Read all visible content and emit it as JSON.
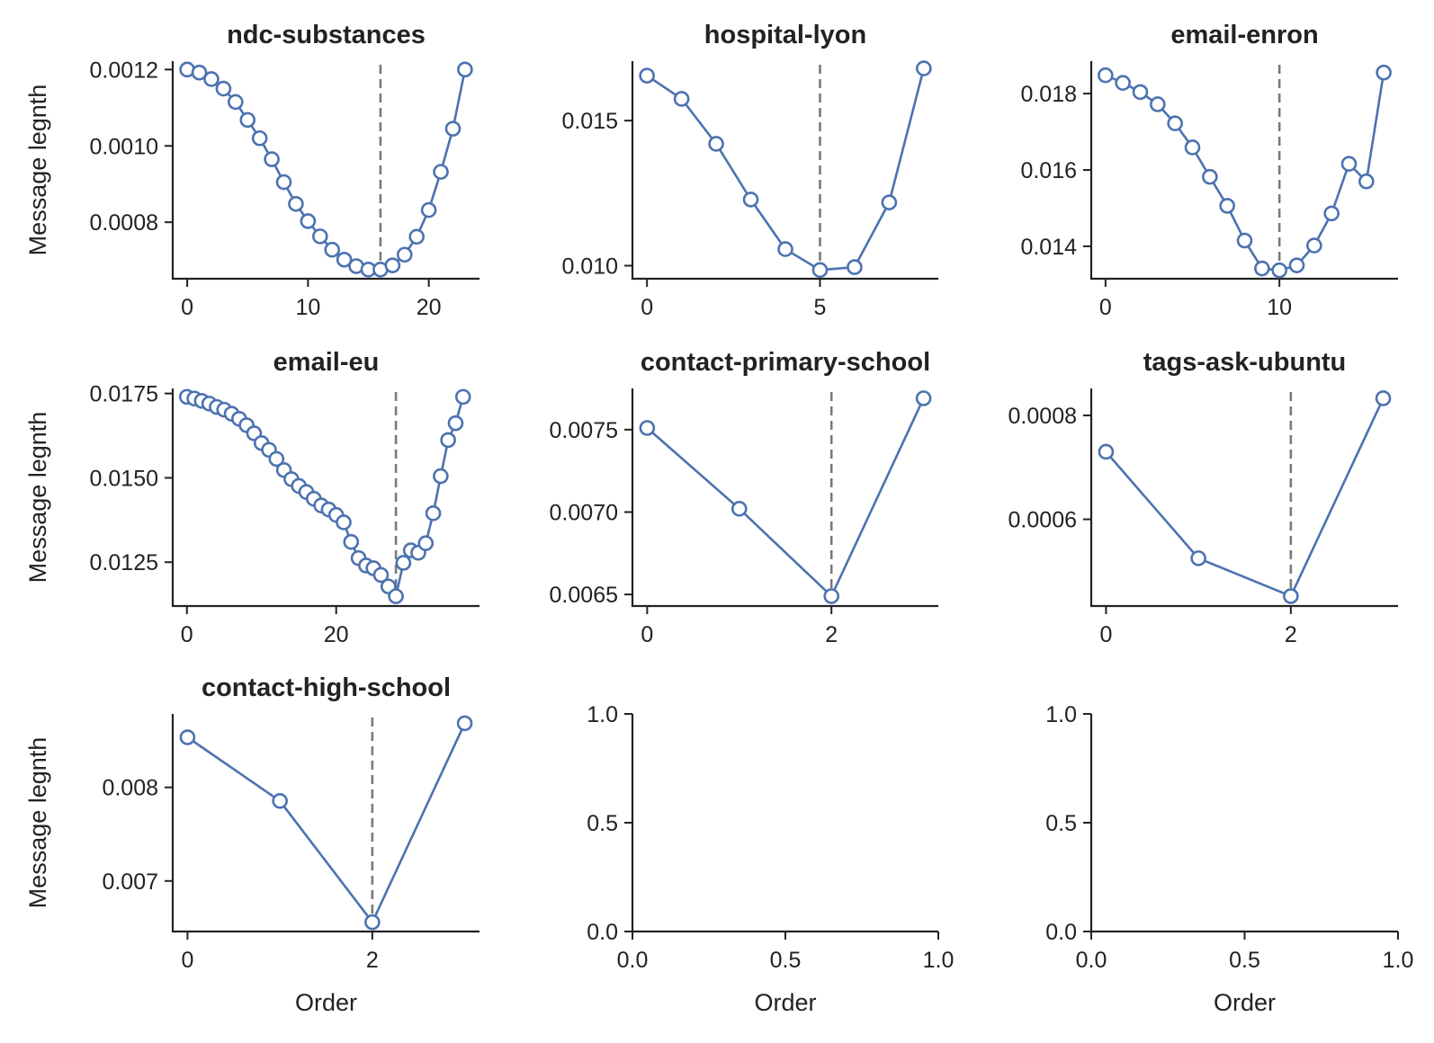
{
  "colors": {
    "series": "#4c72b0",
    "marker_face": "#ffffff",
    "vline": "#7a7a7a",
    "axis": "#222222"
  },
  "chart_data": [
    {
      "type": "line",
      "title": "ndc-substances",
      "xlabel": "",
      "ylabel": "Message legnth",
      "x": [
        0,
        1,
        2,
        3,
        4,
        5,
        6,
        7,
        8,
        9,
        10,
        11,
        12,
        13,
        14,
        15,
        16,
        17,
        18,
        19,
        20,
        21,
        22,
        23
      ],
      "values": [
        0.0012,
        0.001192,
        0.001175,
        0.00115,
        0.001115,
        0.001068,
        0.00102,
        0.000965,
        0.000905,
        0.000848,
        0.000803,
        0.000763,
        0.000728,
        0.000702,
        0.000685,
        0.000676,
        0.000676,
        0.000687,
        0.000715,
        0.000762,
        0.000832,
        0.000932,
        0.001045,
        0.0012
      ],
      "vline": 16,
      "xlim": [
        -1.2,
        24.2
      ],
      "ylim": [
        0.000652,
        0.001222
      ],
      "xticks": [
        0,
        10,
        20
      ],
      "xtick_labels": [
        "0",
        "10",
        "20"
      ],
      "yticks": [
        0.0008,
        0.001,
        0.0012
      ],
      "ytick_labels": [
        "0.0008",
        "0.0010",
        "0.0012"
      ],
      "grid": false
    },
    {
      "type": "line",
      "title": "hospital-lyon",
      "xlabel": "",
      "ylabel": "",
      "x": [
        0,
        1,
        2,
        3,
        4,
        5,
        6,
        7,
        8
      ],
      "values": [
        0.01655,
        0.01575,
        0.0142,
        0.01228,
        0.01057,
        0.00985,
        0.00995,
        0.01218,
        0.0168
      ],
      "vline": 5,
      "xlim": [
        -0.42,
        8.42
      ],
      "ylim": [
        0.00955,
        0.01705
      ],
      "xticks": [
        0,
        5
      ],
      "xtick_labels": [
        "0",
        "5"
      ],
      "yticks": [
        0.01,
        0.015
      ],
      "ytick_labels": [
        "0.010",
        "0.015"
      ],
      "grid": false
    },
    {
      "type": "line",
      "title": "email-enron",
      "xlabel": "",
      "ylabel": "",
      "x": [
        0,
        1,
        2,
        3,
        4,
        5,
        6,
        7,
        8,
        9,
        10,
        11,
        12,
        13,
        14,
        15,
        16
      ],
      "values": [
        0.01848,
        0.01828,
        0.01804,
        0.01772,
        0.01722,
        0.01659,
        0.01582,
        0.01506,
        0.01415,
        0.01342,
        0.01337,
        0.0135,
        0.01402,
        0.01486,
        0.01616,
        0.0157,
        0.01855
      ],
      "vline": 10,
      "xlim": [
        -0.82,
        16.82
      ],
      "ylim": [
        0.01315,
        0.01885
      ],
      "xticks": [
        0,
        10
      ],
      "xtick_labels": [
        "0",
        "10"
      ],
      "yticks": [
        0.014,
        0.016,
        0.018
      ],
      "ytick_labels": [
        "0.014",
        "0.016",
        "0.018"
      ],
      "grid": false
    },
    {
      "type": "line",
      "title": "email-eu",
      "xlabel": "",
      "ylabel": "Message legnth",
      "x": [
        0,
        1,
        2,
        3,
        4,
        5,
        6,
        7,
        8,
        9,
        10,
        11,
        12,
        13,
        14,
        15,
        16,
        17,
        18,
        19,
        20,
        21,
        22,
        23,
        24,
        25,
        26,
        27,
        28,
        29,
        30,
        31,
        32,
        33,
        34,
        35,
        36,
        37
      ],
      "values": [
        0.0174,
        0.01735,
        0.01728,
        0.0172,
        0.0171,
        0.01702,
        0.0169,
        0.01675,
        0.01656,
        0.01632,
        0.01603,
        0.01583,
        0.01556,
        0.01523,
        0.01496,
        0.01476,
        0.01458,
        0.01438,
        0.01418,
        0.01406,
        0.0139,
        0.01368,
        0.0131,
        0.01262,
        0.0124,
        0.01232,
        0.01212,
        0.01178,
        0.01149,
        0.01248,
        0.01285,
        0.01278,
        0.01306,
        0.01395,
        0.01505,
        0.01612,
        0.01662,
        0.0174
      ],
      "vline": 28,
      "xlim": [
        -1.9,
        39.2
      ],
      "ylim": [
        0.0112,
        0.01765
      ],
      "xticks": [
        0,
        20
      ],
      "xtick_labels": [
        "0",
        "20"
      ],
      "yticks": [
        0.0125,
        0.015,
        0.0175
      ],
      "ytick_labels": [
        "0.0125",
        "0.0150",
        "0.0175"
      ],
      "grid": false
    },
    {
      "type": "line",
      "title": "contact-primary-school",
      "xlabel": "",
      "ylabel": "",
      "x": [
        0,
        1,
        2,
        3
      ],
      "values": [
        0.00751,
        0.00702,
        0.00649,
        0.00769
      ],
      "vline": 2,
      "xlim": [
        -0.16,
        3.16
      ],
      "ylim": [
        0.00643,
        0.00775
      ],
      "xticks": [
        0,
        2
      ],
      "xtick_labels": [
        "0",
        "2"
      ],
      "yticks": [
        0.0065,
        0.007,
        0.0075
      ],
      "ytick_labels": [
        "0.0065",
        "0.0070",
        "0.0075"
      ],
      "grid": false
    },
    {
      "type": "line",
      "title": "tags-ask-ubuntu",
      "xlabel": "",
      "ylabel": "",
      "x": [
        0,
        1,
        2,
        3
      ],
      "values": [
        0.00073,
        0.000525,
        0.000452,
        0.000833
      ],
      "vline": 2,
      "xlim": [
        -0.16,
        3.16
      ],
      "ylim": [
        0.000433,
        0.000852
      ],
      "xticks": [
        0,
        2
      ],
      "xtick_labels": [
        "0",
        "2"
      ],
      "yticks": [
        0.0006,
        0.0008
      ],
      "ytick_labels": [
        "0.0006",
        "0.0008"
      ],
      "grid": false
    },
    {
      "type": "line",
      "title": "contact-high-school",
      "xlabel": "Order",
      "ylabel": "Message legnth",
      "x": [
        0,
        1,
        2,
        3
      ],
      "values": [
        0.008535,
        0.007855,
        0.00656,
        0.008685
      ],
      "vline": 2,
      "xlim": [
        -0.16,
        3.16
      ],
      "ylim": [
        0.00646,
        0.008785
      ],
      "xticks": [
        0,
        2
      ],
      "xtick_labels": [
        "0",
        "2"
      ],
      "yticks": [
        0.007,
        0.008
      ],
      "ytick_labels": [
        "0.007",
        "0.008"
      ],
      "grid": false
    },
    {
      "type": "line",
      "title": "",
      "xlabel": "Order",
      "ylabel": "",
      "x": [],
      "values": [],
      "vline": null,
      "xlim": [
        0,
        1
      ],
      "ylim": [
        0,
        1
      ],
      "xticks": [
        0,
        0.5,
        1
      ],
      "xtick_labels": [
        "0.0",
        "0.5",
        "1.0"
      ],
      "yticks": [
        0,
        0.5,
        1
      ],
      "ytick_labels": [
        "0.0",
        "0.5",
        "1.0"
      ],
      "grid": false
    },
    {
      "type": "line",
      "title": "",
      "xlabel": "Order",
      "ylabel": "",
      "x": [],
      "values": [],
      "vline": null,
      "xlim": [
        0,
        1
      ],
      "ylim": [
        0,
        1
      ],
      "xticks": [
        0,
        0.5,
        1
      ],
      "xtick_labels": [
        "0.0",
        "0.5",
        "1.0"
      ],
      "yticks": [
        0,
        0.5,
        1
      ],
      "ytick_labels": [
        "0.0",
        "0.5",
        "1.0"
      ],
      "grid": false
    }
  ]
}
